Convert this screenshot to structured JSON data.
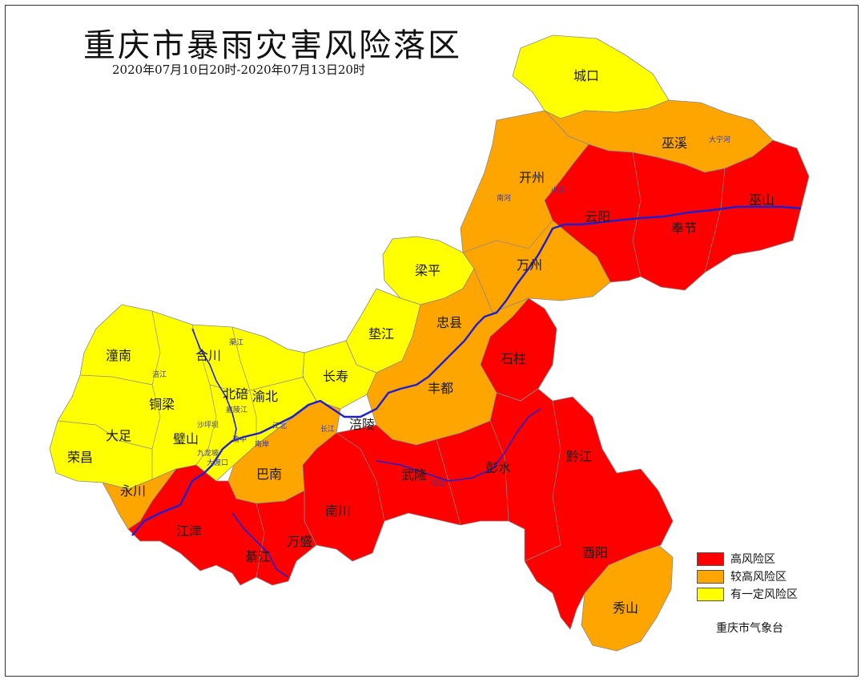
{
  "title": "重庆市暴雨灾害风险落区",
  "subtitle": "2020年07月10日20时-2020年07月13日20时",
  "source": "重庆市气象台",
  "colors": {
    "high": "#ff0000",
    "medium_high": "#ffa500",
    "some": "#ffff00",
    "river": "#1f1fcf",
    "border": "#7a7a7a"
  },
  "legend": [
    {
      "label": "高风险区",
      "color": "#ff0000"
    },
    {
      "label": "较高风险区",
      "color": "#ffa500"
    },
    {
      "label": "有一定风险区",
      "color": "#ffff00"
    }
  ],
  "districts": {
    "chengkou": "城口",
    "wuxi": "巫溪",
    "kaizhou": "开州",
    "yunyang": "云阳",
    "wushan": "巫山",
    "fengjie": "奉节",
    "wanzhou": "万州",
    "liangping": "梁平",
    "zhongxian": "忠县",
    "dianjiang": "垫江",
    "shizhu": "石柱",
    "changshou": "长寿",
    "fengdu": "丰都",
    "tongnan": "潼南",
    "hechuan": "合川",
    "tongliang": "铜梁",
    "beibei": "北碚",
    "yubei": "渝北",
    "dazu": "大足",
    "bishan": "璧山",
    "fuling": "涪陵",
    "rongchang": "荣昌",
    "yongchuan": "永川",
    "banan": "巴南",
    "wulong": "武隆",
    "pengshui": "彭水",
    "qianjiang": "黔江",
    "jiangjin": "江津",
    "nanchuan": "南川",
    "wansheng": "万盛",
    "qijiang": "綦江",
    "youyang": "酉阳",
    "xiushan": "秀山"
  },
  "small_labels": {
    "daninghe": "大宁河",
    "nanhe": "南河",
    "xiaojiang": "小江",
    "fujiang": "涪江",
    "qujiang": "渠江",
    "jialingjiang": "嘉陵江",
    "shapingba": "沙坪坝",
    "jiulongpo": "九龙坡",
    "dadukou": "大渡口",
    "nanan": "南岸",
    "jiangbei": "江北",
    "changjiang": "长江",
    "wujiang": "乌江",
    "yuzhong": "渝中"
  }
}
